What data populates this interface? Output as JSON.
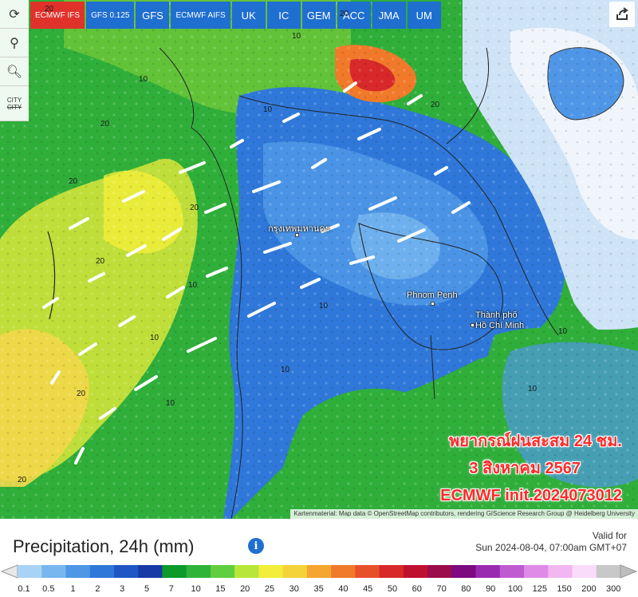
{
  "models": [
    {
      "name": "ecmwf-ifs",
      "label": "ECMWF IFS",
      "active": true,
      "small": true
    },
    {
      "name": "gfs-0125",
      "label": "GFS 0.125",
      "active": false,
      "small": true
    },
    {
      "name": "gfs",
      "label": "GFS",
      "active": false,
      "small": false
    },
    {
      "name": "ecmwf-aifs",
      "label": "ECMWF AIFS",
      "active": false,
      "small": true
    },
    {
      "name": "uk",
      "label": "UK",
      "active": false,
      "small": false
    },
    {
      "name": "ic",
      "label": "IC",
      "active": false,
      "small": false
    },
    {
      "name": "gem",
      "label": "GEM",
      "active": false,
      "small": false
    },
    {
      "name": "acc",
      "label": "ACC",
      "active": false,
      "small": false
    },
    {
      "name": "jma",
      "label": "JMA",
      "active": false,
      "small": false
    },
    {
      "name": "um",
      "label": "UM",
      "active": false,
      "small": false
    }
  ],
  "tools": {
    "city_top": "CITY",
    "city_bottom": "CITY"
  },
  "map": {
    "cities": [
      {
        "name": "bangkok",
        "label": "กรุงเทพมหานคร"
      },
      {
        "name": "phnom-penh",
        "label": "Phnom Penh"
      },
      {
        "name": "ho-chi-minh-1",
        "label": "Thành phố"
      },
      {
        "name": "ho-chi-minh-2",
        "label": "Hồ Chí Minh"
      }
    ],
    "contour_labels": [
      "20",
      "10",
      "20",
      "20",
      "20",
      "20",
      "10",
      "10",
      "20",
      "10",
      "10",
      "10",
      "20",
      "20",
      "10",
      "10",
      "10",
      "10",
      "20"
    ],
    "overlay_line1": "พยากรณ์ฝนสะสม 24 ชม.",
    "overlay_line2": "3 สิงหาคม 2567",
    "overlay_line3": "ECMWF init.2024073012",
    "attribution": "Kartenmaterial: Map data © OpenStreetMap contributors, rendering GIScience Research Group @ Heidelberg University"
  },
  "footer": {
    "title": "Precipitation, 24h (mm)",
    "valid_label": "Valid for",
    "valid_time": "Sun 2024-08-04, 07:00am GMT+07"
  },
  "scale": {
    "labels": [
      "0.1",
      "0.5",
      "1",
      "2",
      "3",
      "5",
      "7",
      "10",
      "15",
      "20",
      "25",
      "30",
      "35",
      "40",
      "45",
      "50",
      "60",
      "70",
      "80",
      "90",
      "100",
      "125",
      "150",
      "200",
      "300"
    ],
    "colors": [
      "#a9d3f5",
      "#77b6ef",
      "#4f97e6",
      "#2f78d9",
      "#1f56c4",
      "#173aa6",
      "#0d9a2a",
      "#2fb43a",
      "#5fcf3f",
      "#b9e63a",
      "#f2ee3a",
      "#f4d23a",
      "#f4a630",
      "#f07a2a",
      "#e8502a",
      "#d8282a",
      "#c01030",
      "#9b0c4c",
      "#7d0a80",
      "#9a2ab0",
      "#c05ad0",
      "#e08ae8",
      "#f2b6f2",
      "#f9dcf9",
      "#c8c8c8"
    ]
  }
}
